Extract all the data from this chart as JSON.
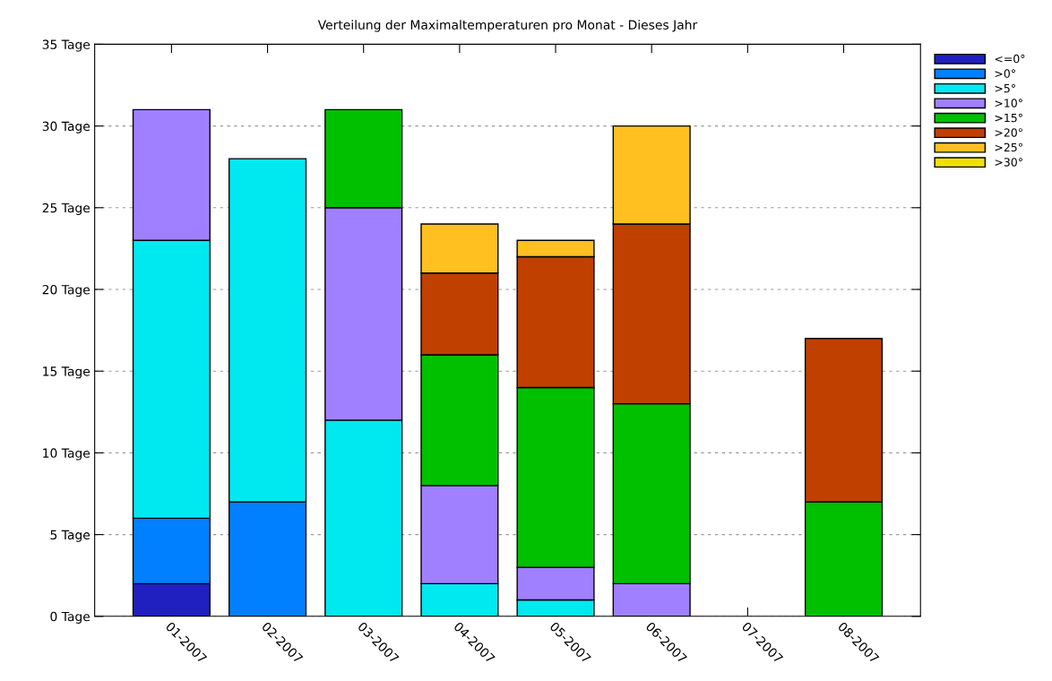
{
  "chart_data": {
    "type": "bar",
    "stacked": true,
    "title": "Verteilung der Maximaltemperaturen pro Monat - Dieses Jahr",
    "categories": [
      "01-2007",
      "02-2007",
      "03-2007",
      "04-2007",
      "05-2007",
      "06-2007",
      "07-2007",
      "08-2007"
    ],
    "series": [
      {
        "name": "<=0°",
        "color": "#2020c0",
        "values": [
          2,
          null,
          null,
          null,
          null,
          null,
          null,
          null
        ]
      },
      {
        "name": ">0°",
        "color": "#0080ff",
        "values": [
          4,
          7,
          null,
          null,
          null,
          null,
          null,
          null
        ]
      },
      {
        "name": ">5°",
        "color": "#00e8f0",
        "values": [
          17,
          21,
          12,
          2,
          1,
          null,
          null,
          null
        ]
      },
      {
        "name": ">10°",
        "color": "#a080ff",
        "values": [
          8,
          null,
          13,
          6,
          2,
          2,
          null,
          null
        ]
      },
      {
        "name": ">15°",
        "color": "#00c000",
        "values": [
          null,
          null,
          6,
          8,
          11,
          11,
          null,
          7
        ]
      },
      {
        "name": ">20°",
        "color": "#c04000",
        "values": [
          null,
          null,
          null,
          5,
          8,
          11,
          null,
          10
        ]
      },
      {
        "name": ">25°",
        "color": "#ffc020",
        "values": [
          null,
          null,
          null,
          3,
          1,
          6,
          null,
          null
        ]
      },
      {
        "name": ">30°",
        "color": "#f0e000",
        "values": [
          null,
          null,
          null,
          null,
          null,
          null,
          null,
          null
        ]
      }
    ],
    "ylim": [
      0,
      35
    ],
    "yticks": [
      {
        "value": 0,
        "label": "0 Tage"
      },
      {
        "value": 5,
        "label": "5 Tage"
      },
      {
        "value": 10,
        "label": "10 Tage"
      },
      {
        "value": 15,
        "label": "15 Tage"
      },
      {
        "value": 20,
        "label": "20 Tage"
      },
      {
        "value": 25,
        "label": "25 Tage"
      },
      {
        "value": 30,
        "label": "30 Tage"
      },
      {
        "value": 35,
        "label": "35 Tage"
      }
    ],
    "grid": "y",
    "legend": "top right"
  }
}
